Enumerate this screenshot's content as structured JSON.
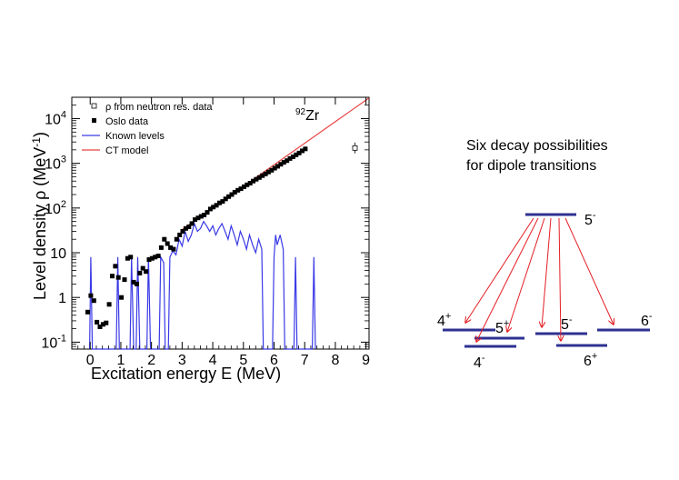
{
  "chart_data": {
    "type": "scatter",
    "xlabel": "Excitation energy E (MeV)",
    "ylabel": "Level density ρ (MeV",
    "ylabel_sup": "-1",
    "ylabel_end": ")",
    "xlim": [
      -0.6,
      9.1
    ],
    "ylim": [
      0.07,
      30000
    ],
    "yscale": "log",
    "x_ticks": [
      0,
      1,
      2,
      3,
      4,
      5,
      6,
      7,
      8,
      9
    ],
    "y_ticks": [
      {
        "value": 0.1,
        "base": "10",
        "exp": "-1"
      },
      {
        "value": 1,
        "base": "1",
        "exp": ""
      },
      {
        "value": 10,
        "base": "10",
        "exp": ""
      },
      {
        "value": 100,
        "base": "10",
        "exp": "2"
      },
      {
        "value": 1000,
        "base": "10",
        "exp": "3"
      },
      {
        "value": 10000,
        "base": "10",
        "exp": "4"
      }
    ],
    "isotope": {
      "mass": "92",
      "symbol": "Zr"
    },
    "legend_position": "top-left",
    "series": [
      {
        "name": "ρ from neutron res. data",
        "marker": "open-square",
        "color": "#000000",
        "points": [
          [
            8.64,
            2200
          ]
        ]
      },
      {
        "name": "Oslo data",
        "marker": "filled-square",
        "color": "#000000",
        "points": [
          [
            -0.08,
            0.47
          ],
          [
            0.02,
            1.1
          ],
          [
            0.12,
            0.85
          ],
          [
            0.22,
            0.28
          ],
          [
            0.32,
            0.22
          ],
          [
            0.42,
            0.25
          ],
          [
            0.52,
            0.27
          ],
          [
            0.62,
            0.7
          ],
          [
            0.72,
            3.0
          ],
          [
            0.82,
            5.0
          ],
          [
            0.92,
            2.8
          ],
          [
            1.02,
            1.0
          ],
          [
            1.12,
            2.5
          ],
          [
            1.22,
            7.5
          ],
          [
            1.32,
            8.0
          ],
          [
            1.42,
            2.2
          ],
          [
            1.52,
            2.0
          ],
          [
            1.62,
            3.5
          ],
          [
            1.72,
            4.5
          ],
          [
            1.82,
            3.8
          ],
          [
            1.92,
            7.0
          ],
          [
            2.02,
            7.5
          ],
          [
            2.12,
            8.0
          ],
          [
            2.22,
            8.5
          ],
          [
            2.32,
            13
          ],
          [
            2.42,
            20
          ],
          [
            2.52,
            16
          ],
          [
            2.62,
            13
          ],
          [
            2.72,
            12
          ],
          [
            2.82,
            20
          ],
          [
            2.92,
            25
          ],
          [
            3.02,
            30
          ],
          [
            3.12,
            35
          ],
          [
            3.22,
            38
          ],
          [
            3.32,
            45
          ],
          [
            3.42,
            55
          ],
          [
            3.52,
            60
          ],
          [
            3.62,
            65
          ],
          [
            3.72,
            70
          ],
          [
            3.82,
            80
          ],
          [
            3.92,
            95
          ],
          [
            4.02,
            105
          ],
          [
            4.12,
            115
          ],
          [
            4.22,
            130
          ],
          [
            4.32,
            140
          ],
          [
            4.42,
            160
          ],
          [
            4.52,
            180
          ],
          [
            4.62,
            200
          ],
          [
            4.72,
            225
          ],
          [
            4.82,
            250
          ],
          [
            4.92,
            270
          ],
          [
            5.02,
            300
          ],
          [
            5.12,
            330
          ],
          [
            5.22,
            360
          ],
          [
            5.32,
            400
          ],
          [
            5.42,
            440
          ],
          [
            5.52,
            480
          ],
          [
            5.62,
            530
          ],
          [
            5.72,
            580
          ],
          [
            5.82,
            640
          ],
          [
            5.92,
            700
          ],
          [
            6.02,
            780
          ],
          [
            6.12,
            860
          ],
          [
            6.22,
            950
          ],
          [
            6.32,
            1050
          ],
          [
            6.42,
            1150
          ],
          [
            6.52,
            1280
          ],
          [
            6.62,
            1400
          ],
          [
            6.72,
            1550
          ],
          [
            6.82,
            1700
          ],
          [
            6.92,
            1900
          ],
          [
            7.02,
            2100
          ]
        ]
      },
      {
        "name": "Known levels",
        "marker": "line",
        "color": "#3a3ae6",
        "points": [
          [
            -0.02,
            0.07
          ],
          [
            0.02,
            8.0
          ],
          [
            0.07,
            0.07
          ],
          [
            0.85,
            0.07
          ],
          [
            0.9,
            8.0
          ],
          [
            0.95,
            0.07
          ],
          [
            1.3,
            0.07
          ],
          [
            1.35,
            8.0
          ],
          [
            1.42,
            0.07
          ],
          [
            1.5,
            0.07
          ],
          [
            1.55,
            8.0
          ],
          [
            1.62,
            0.07
          ],
          [
            1.85,
            0.07
          ],
          [
            1.9,
            8.0
          ],
          [
            1.97,
            0.07
          ],
          [
            2.25,
            0.07
          ],
          [
            2.3,
            8.0
          ],
          [
            2.4,
            6.0
          ],
          [
            2.45,
            0.07
          ],
          [
            2.55,
            0.07
          ],
          [
            2.6,
            8.0
          ],
          [
            2.7,
            11
          ],
          [
            2.8,
            9
          ],
          [
            2.9,
            20
          ],
          [
            3.0,
            14
          ],
          [
            3.1,
            30
          ],
          [
            3.2,
            18
          ],
          [
            3.3,
            25
          ],
          [
            3.4,
            45
          ],
          [
            3.5,
            30
          ],
          [
            3.6,
            35
          ],
          [
            3.7,
            50
          ],
          [
            3.8,
            40
          ],
          [
            3.9,
            30
          ],
          [
            4.0,
            40
          ],
          [
            4.1,
            25
          ],
          [
            4.2,
            35
          ],
          [
            4.3,
            45
          ],
          [
            4.4,
            30
          ],
          [
            4.5,
            20
          ],
          [
            4.6,
            40
          ],
          [
            4.7,
            25
          ],
          [
            4.8,
            15
          ],
          [
            4.9,
            30
          ],
          [
            5.0,
            20
          ],
          [
            5.1,
            12
          ],
          [
            5.2,
            25
          ],
          [
            5.3,
            15
          ],
          [
            5.4,
            10
          ],
          [
            5.5,
            20
          ],
          [
            5.6,
            12
          ],
          [
            5.65,
            0.07
          ],
          [
            5.95,
            0.07
          ],
          [
            6.0,
            8.0
          ],
          [
            6.05,
            25
          ],
          [
            6.1,
            15
          ],
          [
            6.2,
            25
          ],
          [
            6.3,
            12
          ],
          [
            6.35,
            0.07
          ],
          [
            6.65,
            0.07
          ],
          [
            6.7,
            8.0
          ],
          [
            6.75,
            0.07
          ],
          [
            7.25,
            0.07
          ],
          [
            7.3,
            8.0
          ],
          [
            7.35,
            0.07
          ]
        ]
      },
      {
        "name": "CT model",
        "marker": "line",
        "color": "#e84545",
        "points": [
          [
            3.0,
            33
          ],
          [
            9.1,
            29000
          ]
        ]
      }
    ]
  },
  "diagram": {
    "caption_line1": "Six decay possibilities",
    "caption_line2": "for dipole transitions",
    "initial_level": {
      "base": "5",
      "sup": "-"
    },
    "final_levels": [
      {
        "base": "4",
        "sup": "+"
      },
      {
        "base": "5",
        "sup": "+"
      },
      {
        "base": "4",
        "sup": "-"
      },
      {
        "base": "5",
        "sup": "-"
      },
      {
        "base": "6",
        "sup": "+"
      },
      {
        "base": "6",
        "sup": "-"
      }
    ],
    "level_color": "#2e3192",
    "arrow_color": "#e31e24"
  }
}
